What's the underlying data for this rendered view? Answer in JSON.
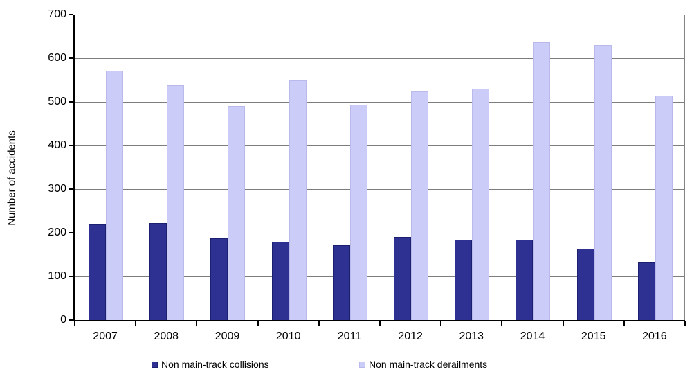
{
  "chart_data": {
    "type": "bar",
    "title": "",
    "xlabel": "",
    "ylabel": "Number of accidents",
    "ylim": [
      0,
      700
    ],
    "ytick_step": 100,
    "grid": true,
    "legend_position": "bottom",
    "categories": [
      "2007",
      "2008",
      "2009",
      "2010",
      "2011",
      "2012",
      "2013",
      "2014",
      "2015",
      "2016"
    ],
    "series": [
      {
        "name": "Non main-track collisions",
        "color": "#2e3192",
        "border_color": "#1c2071",
        "values": [
          219,
          222,
          187,
          180,
          171,
          190,
          184,
          184,
          164,
          133
        ]
      },
      {
        "name": "Non main-track derailments",
        "color": "#ccccf8",
        "border_color": "#b9b9ec",
        "values": [
          571,
          538,
          491,
          550,
          494,
          524,
          530,
          636,
          630,
          514
        ]
      }
    ],
    "colors": {
      "gridline": "#7d7d7d",
      "axis": "#000000",
      "plot_border": "#848484",
      "text": "#000000"
    },
    "legend_x_positions": [
      219,
      519
    ]
  }
}
